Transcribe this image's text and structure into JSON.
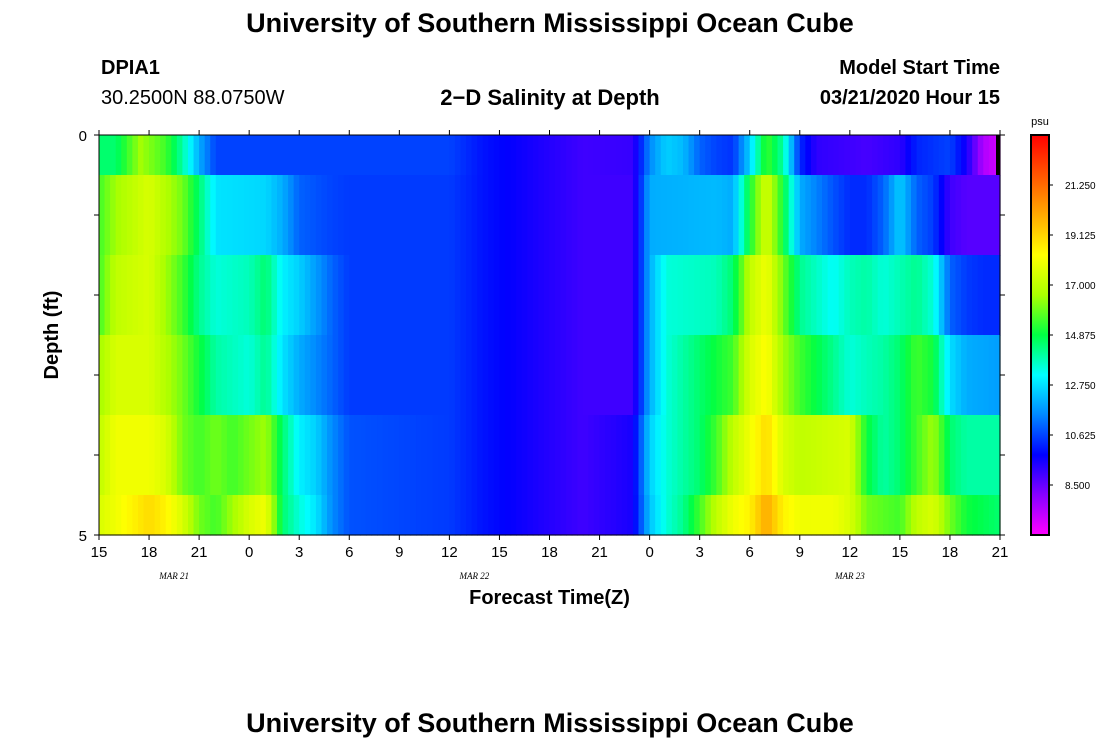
{
  "page": {
    "title_top": "University of Southern Mississippi Ocean Cube",
    "title_bottom": "University of Southern Mississippi Ocean Cube",
    "station": "DPIA1",
    "coords": "30.2500N 88.0750W",
    "model_label": "Model Start Time",
    "model_time": "03/21/2020 Hour 15"
  },
  "chart_data": {
    "type": "heatmap",
    "title": "2−D Salinity at Depth",
    "xlabel": "Forecast Time(Z)",
    "ylabel": "Depth (ft)",
    "x_range_hours": [
      15,
      69
    ],
    "x_tick_labels": [
      "15",
      "18",
      "21",
      "0",
      "3",
      "6",
      "9",
      "12",
      "15",
      "18",
      "21",
      "0",
      "3",
      "6",
      "9",
      "12",
      "15",
      "18",
      "21"
    ],
    "date_labels": [
      {
        "text": "MAR  21",
        "at_hour": 19.5
      },
      {
        "text": "MAR  22",
        "at_hour": 37.5
      },
      {
        "text": "MAR  23",
        "at_hour": 60
      }
    ],
    "y_range": [
      0,
      5
    ],
    "y_tick_labels": [
      "0",
      "5"
    ],
    "colorbar": {
      "unit": "psu",
      "range": [
        6.375,
        23.375
      ],
      "labels": [
        "21.250",
        "19.125",
        "17.000",
        "14.875",
        "12.750",
        "10.625",
        "8.500"
      ],
      "colors": [
        "#ff00ff",
        "#8800ff",
        "#0000ff",
        "#0088ff",
        "#00ffff",
        "#00ff44",
        "#aaff00",
        "#ffff00",
        "#ffaa00",
        "#ff5500",
        "#ff0000"
      ]
    },
    "depth_layers": [
      {
        "name": "0-0.5 ft",
        "points": [
          [
            15,
            14.5
          ],
          [
            16,
            14.5
          ],
          [
            17.5,
            16.5
          ],
          [
            19,
            15.5
          ],
          [
            20,
            14
          ],
          [
            21,
            12
          ],
          [
            22,
            10.6
          ],
          [
            36,
            10.6
          ],
          [
            38,
            10
          ],
          [
            44,
            9
          ],
          [
            47,
            9.1
          ],
          [
            48,
            11.5
          ],
          [
            49,
            12.5
          ],
          [
            50,
            12.2
          ],
          [
            51,
            11
          ],
          [
            52,
            10.6
          ],
          [
            53,
            10.4
          ],
          [
            54,
            12.5
          ],
          [
            55,
            15.5
          ],
          [
            56,
            14
          ],
          [
            57,
            10.3
          ],
          [
            58,
            9.2
          ],
          [
            61,
            8.9
          ],
          [
            63,
            9.2
          ],
          [
            64,
            10.2
          ],
          [
            66,
            10.6
          ],
          [
            67,
            9.5
          ],
          [
            68,
            7.5
          ],
          [
            69,
            7
          ]
        ]
      },
      {
        "name": "0.5-1.5 ft",
        "points": [
          [
            15,
            15.5
          ],
          [
            16,
            16.5
          ],
          [
            18,
            17.5
          ],
          [
            20,
            16
          ],
          [
            21,
            14.5
          ],
          [
            22,
            12.8
          ],
          [
            25,
            12.6
          ],
          [
            26,
            12
          ],
          [
            27,
            11
          ],
          [
            29,
            10.6
          ],
          [
            30,
            10.5
          ],
          [
            36,
            10.5
          ],
          [
            38,
            10
          ],
          [
            44,
            9
          ],
          [
            47,
            9
          ],
          [
            48,
            12
          ],
          [
            52,
            12.2
          ],
          [
            53,
            12
          ],
          [
            54,
            15
          ],
          [
            55,
            17.5
          ],
          [
            56,
            15
          ],
          [
            57,
            12
          ],
          [
            59,
            10.8
          ],
          [
            60,
            10.3
          ],
          [
            61,
            10.3
          ],
          [
            62,
            11
          ],
          [
            63,
            12.5
          ],
          [
            64,
            11
          ],
          [
            65,
            10.5
          ],
          [
            66,
            9
          ],
          [
            67,
            8.7
          ],
          [
            69,
            8.7
          ]
        ]
      },
      {
        "name": "1.5-2.5 ft",
        "points": [
          [
            15,
            15.5
          ],
          [
            16,
            17
          ],
          [
            18,
            17.5
          ],
          [
            20,
            15.5
          ],
          [
            21,
            14.2
          ],
          [
            22,
            13.5
          ],
          [
            24,
            13.8
          ],
          [
            25,
            14.5
          ],
          [
            26,
            13
          ],
          [
            27,
            12.5
          ],
          [
            29,
            11
          ],
          [
            30,
            10.5
          ],
          [
            36,
            10.5
          ],
          [
            38,
            10
          ],
          [
            44,
            9
          ],
          [
            47,
            9
          ],
          [
            48,
            12
          ],
          [
            49,
            13.5
          ],
          [
            52,
            13.8
          ],
          [
            53,
            14.5
          ],
          [
            54,
            17
          ],
          [
            55,
            18
          ],
          [
            56,
            16
          ],
          [
            57,
            14.2
          ],
          [
            59,
            13.2
          ],
          [
            60,
            13.8
          ],
          [
            61,
            14
          ],
          [
            62,
            13.5
          ],
          [
            64,
            14.2
          ],
          [
            65,
            13.5
          ],
          [
            66,
            11
          ],
          [
            67,
            10.5
          ],
          [
            68,
            10.3
          ],
          [
            69,
            10.3
          ]
        ]
      },
      {
        "name": "2.5-3.5 ft",
        "points": [
          [
            15,
            16.5
          ],
          [
            16,
            17.5
          ],
          [
            18,
            17.5
          ],
          [
            20,
            16
          ],
          [
            21,
            15
          ],
          [
            22,
            14
          ],
          [
            24,
            13.5
          ],
          [
            25,
            14.2
          ],
          [
            26,
            12.8
          ],
          [
            27,
            12
          ],
          [
            29,
            11
          ],
          [
            30,
            10.5
          ],
          [
            36,
            10.5
          ],
          [
            38,
            10
          ],
          [
            44,
            9
          ],
          [
            47,
            9
          ],
          [
            48,
            12
          ],
          [
            49,
            13.5
          ],
          [
            51,
            14.5
          ],
          [
            53,
            15.5
          ],
          [
            54,
            17.5
          ],
          [
            55,
            18.3
          ],
          [
            56,
            16.5
          ],
          [
            57,
            15.5
          ],
          [
            59,
            14.2
          ],
          [
            60,
            13.5
          ],
          [
            61,
            13.8
          ],
          [
            62,
            14
          ],
          [
            63,
            14.5
          ],
          [
            64,
            15.5
          ],
          [
            65,
            15
          ],
          [
            66,
            12.7
          ],
          [
            67,
            12
          ],
          [
            69,
            11.8
          ]
        ]
      },
      {
        "name": "3.5-4.5 ft",
        "points": [
          [
            15,
            17
          ],
          [
            16,
            18
          ],
          [
            18,
            18
          ],
          [
            19,
            17.5
          ],
          [
            20,
            16
          ],
          [
            21,
            15.5
          ],
          [
            22,
            16
          ],
          [
            23,
            15.5
          ],
          [
            24,
            16
          ],
          [
            25,
            16.5
          ],
          [
            26,
            14.5
          ],
          [
            27,
            13
          ],
          [
            28,
            12.5
          ],
          [
            29,
            11.5
          ],
          [
            30,
            10.8
          ],
          [
            36,
            10.5
          ],
          [
            38,
            10
          ],
          [
            44,
            9
          ],
          [
            47,
            9.5
          ],
          [
            48,
            12.5
          ],
          [
            49,
            13.5
          ],
          [
            50,
            14
          ],
          [
            51,
            14.5
          ],
          [
            52,
            15.5
          ],
          [
            53,
            17
          ],
          [
            54,
            18
          ],
          [
            55,
            19
          ],
          [
            56,
            17.5
          ],
          [
            57,
            17
          ],
          [
            60,
            17.5
          ],
          [
            61,
            15
          ],
          [
            62,
            14
          ],
          [
            63,
            14.5
          ],
          [
            64,
            15.5
          ],
          [
            65,
            16.5
          ],
          [
            66,
            14.5
          ],
          [
            67,
            14
          ],
          [
            69,
            14
          ]
        ]
      },
      {
        "name": "4.5-5 ft",
        "points": [
          [
            15,
            17.5
          ],
          [
            16,
            18
          ],
          [
            18,
            19
          ],
          [
            19,
            18.5
          ],
          [
            20,
            17.5
          ],
          [
            21,
            16
          ],
          [
            22,
            15.5
          ],
          [
            23,
            16.5
          ],
          [
            24,
            17.5
          ],
          [
            25,
            18
          ],
          [
            26,
            14.5
          ],
          [
            27,
            13.5
          ],
          [
            28,
            12.8
          ],
          [
            29,
            11.5
          ],
          [
            30,
            10.8
          ],
          [
            36,
            10.5
          ],
          [
            38,
            10
          ],
          [
            44,
            9
          ],
          [
            47,
            9.5
          ],
          [
            48,
            12.3
          ],
          [
            49,
            13.5
          ],
          [
            50,
            14.2
          ],
          [
            51,
            15.5
          ],
          [
            52,
            17
          ],
          [
            53,
            18
          ],
          [
            54,
            18.5
          ],
          [
            55,
            20
          ],
          [
            56,
            18.5
          ],
          [
            57,
            18
          ],
          [
            59,
            18
          ],
          [
            60,
            17.5
          ],
          [
            61,
            16
          ],
          [
            63,
            15.5
          ],
          [
            64,
            17
          ],
          [
            65,
            17.5
          ],
          [
            66,
            16
          ],
          [
            67,
            15
          ],
          [
            69,
            14.5
          ]
        ]
      }
    ]
  }
}
